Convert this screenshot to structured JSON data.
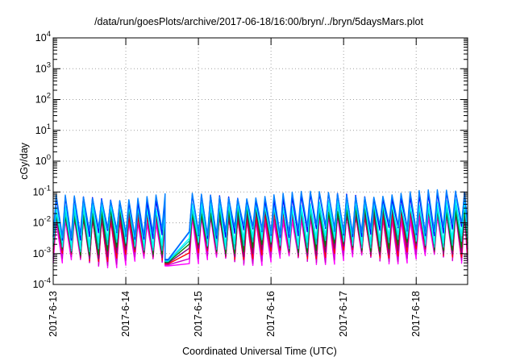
{
  "chart_data": {
    "type": "line",
    "title": "/data/run/goesPlots/archive/2017-06-18/16:00/bryn/../bryn/5daysMars.plot",
    "xlabel": "Coordinated Universal Time (UTC)",
    "ylabel": "cGy/day",
    "yscale": "log",
    "ylim": [
      0.0001,
      10000
    ],
    "xlim": [
      "2017-06-13 00:00",
      "2017-06-18 17:00"
    ],
    "grid": true,
    "x_tick_labels": [
      "2017-6-13",
      "2017-6-14",
      "2017-6-15",
      "2017-6-16",
      "2017-6-17",
      "2017-6-18"
    ],
    "y_tick_labels": [
      {
        "base": "10",
        "exp": "-4"
      },
      {
        "base": "10",
        "exp": "-3"
      },
      {
        "base": "10",
        "exp": "-2"
      },
      {
        "base": "10",
        "exp": "-1"
      },
      {
        "base": "10",
        "exp": "0"
      },
      {
        "base": "10",
        "exp": "1"
      },
      {
        "base": "10",
        "exp": "2"
      },
      {
        "base": "10",
        "exp": "3"
      },
      {
        "base": "10",
        "exp": "4"
      }
    ],
    "cycle_hours": 3,
    "gap": {
      "start": "2017-06-14 14:00",
      "end": "2017-06-14 20:00",
      "low_value": 0.0004
    },
    "series": [
      {
        "color": "#ff00ff",
        "peak": 0.011,
        "trough": 0.0005
      },
      {
        "color": "#cc00cc",
        "peak": 0.013,
        "trough": 0.0006
      },
      {
        "color": "#ff0000",
        "peak": 0.016,
        "trough": 0.0008
      },
      {
        "color": "#800080",
        "peak": 0.018,
        "trough": 0.001
      },
      {
        "color": "#008000",
        "peak": 0.022,
        "trough": 0.0013
      },
      {
        "color": "#00cccc",
        "peak": 0.028,
        "trough": 0.0017
      },
      {
        "color": "#00ffff",
        "peak": 0.034,
        "trough": 0.0022
      },
      {
        "color": "#0000ff",
        "peak": 0.055,
        "trough": 0.004
      },
      {
        "color": "#0080ff",
        "peak": 0.065,
        "trough": 0.005
      }
    ]
  }
}
